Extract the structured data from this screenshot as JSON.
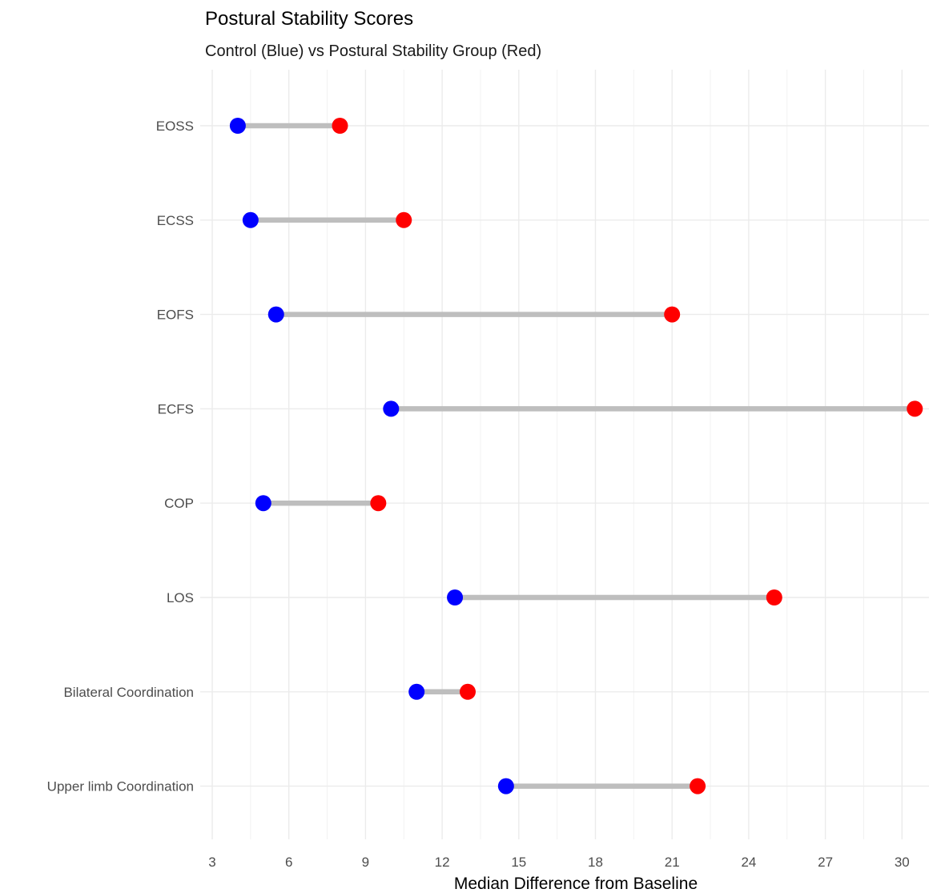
{
  "chart_data": {
    "type": "dumbbell",
    "title": "Postural Stability Scores",
    "subtitle": "Control (Blue) vs Postural Stability Group (Red)",
    "xlabel": "Median Difference from Baseline",
    "ylabel": "",
    "xlim": [
      3,
      31.2
    ],
    "xticks": [
      3,
      6,
      9,
      12,
      15,
      18,
      21,
      24,
      27,
      30
    ],
    "grid": true,
    "categories": [
      "EOSS",
      "ECSS",
      "EOFS",
      "ECFS",
      "COP",
      "LOS",
      "Bilateral Coordination",
      "Upper limb Coordination"
    ],
    "series": [
      {
        "name": "Control",
        "color": "#0000ff",
        "values": [
          4,
          4.5,
          5.5,
          10,
          5,
          12.5,
          11,
          14.5
        ]
      },
      {
        "name": "Postural Stability Group",
        "color": "#ff0000",
        "values": [
          8,
          10.5,
          21,
          30.5,
          9.5,
          25,
          13,
          22
        ]
      }
    ],
    "segment_color": "#bebebe"
  }
}
